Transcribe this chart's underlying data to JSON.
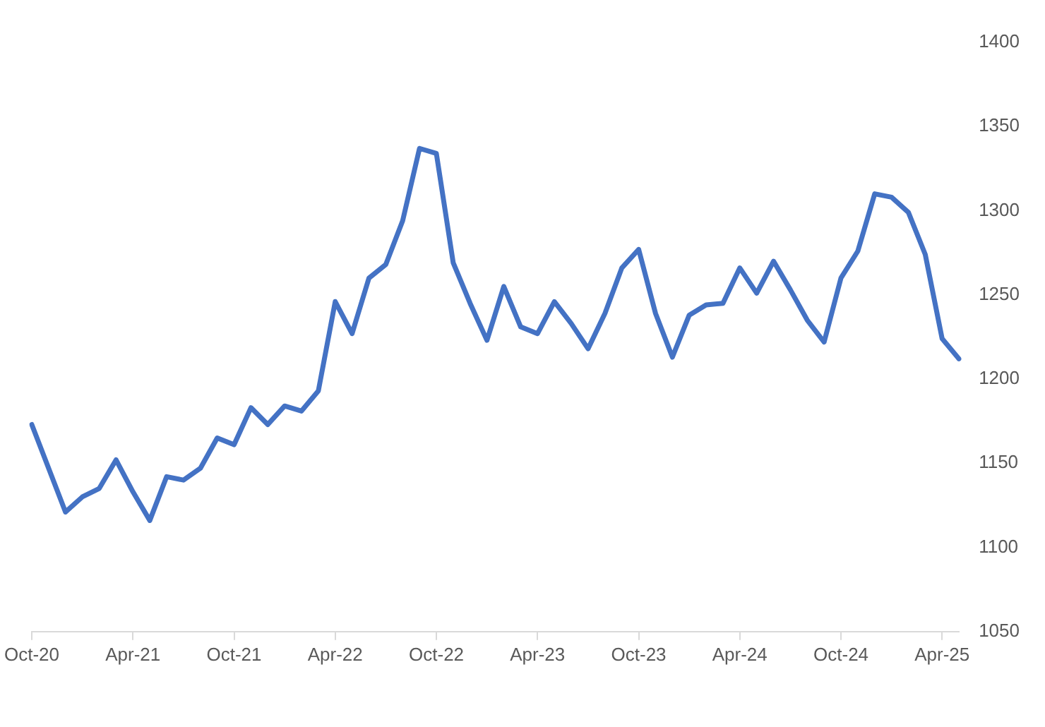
{
  "chart_data": {
    "type": "line",
    "categories": [
      "Oct-20",
      null,
      null,
      null,
      null,
      null,
      "Apr-21",
      null,
      null,
      null,
      null,
      null,
      "Oct-21",
      null,
      null,
      null,
      null,
      null,
      "Apr-22",
      null,
      null,
      null,
      null,
      null,
      "Oct-22",
      null,
      null,
      null,
      null,
      null,
      "Apr-23",
      null,
      null,
      null,
      null,
      null,
      "Oct-23",
      null,
      null,
      null,
      null,
      null,
      "Apr-24",
      null,
      null,
      null,
      null,
      null,
      "Oct-24",
      null,
      null,
      null,
      null,
      null,
      "Apr-25",
      null
    ],
    "series": [
      {
        "color": "#4472c4",
        "values": [
          1173,
          1147,
          1121,
          1130,
          1135,
          1152,
          1133,
          1116,
          1142,
          1140,
          1147,
          1165,
          1161,
          1183,
          1173,
          1184,
          1181,
          1193,
          1246,
          1227,
          1260,
          1268,
          1294,
          1337,
          1334,
          1269,
          1245,
          1223,
          1255,
          1231,
          1227,
          1246,
          1233,
          1218,
          1239,
          1266,
          1277,
          1239,
          1213,
          1238,
          1244,
          1245,
          1266,
          1251,
          1270,
          1253,
          1235,
          1222,
          1260,
          1276,
          1310,
          1308,
          1299,
          1274,
          1224,
          1212
        ]
      }
    ],
    "ylim": [
      1050,
      1400
    ],
    "yticks": [
      1050,
      1100,
      1150,
      1200,
      1250,
      1300,
      1350,
      1400
    ],
    "grid": false,
    "legend": false,
    "marker": "none",
    "line_style": "solid"
  }
}
